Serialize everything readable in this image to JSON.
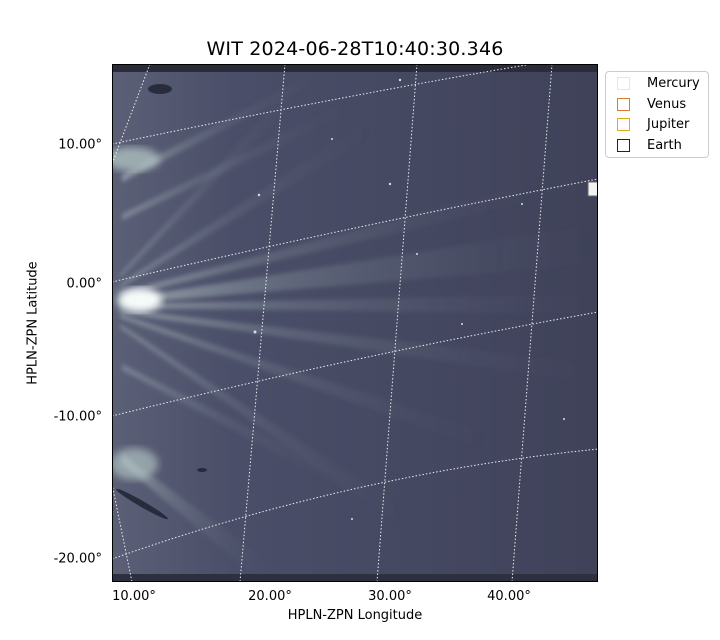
{
  "plot": {
    "title": "WIT 2024-06-28T10:40:30.346",
    "xlabel": "HPLN-ZPN Longitude",
    "ylabel": "HPLN-ZPN Latitude",
    "x_ticks": [
      "10.00°",
      "20.00°",
      "30.00°",
      "40.00°"
    ],
    "y_ticks": [
      "10.00°",
      "0.00°",
      "-10.00°",
      "-20.00°"
    ]
  },
  "legend": {
    "items": [
      {
        "label": "Mercury",
        "color": "#e5e5e5"
      },
      {
        "label": "Venus",
        "color": "#e07a30"
      },
      {
        "label": "Jupiter",
        "color": "#e0a820"
      },
      {
        "label": "Earth",
        "color": "#1a1a6e"
      }
    ]
  },
  "image": {
    "colormap": "bone",
    "background_color": "#43465f",
    "streamer_color": "#cfe3df"
  }
}
